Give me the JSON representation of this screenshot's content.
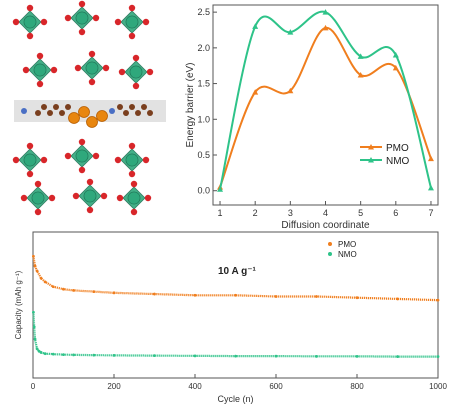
{
  "structure_panel": {
    "colors": {
      "octahedron": "#2fa87c",
      "oxygen": "#d8262a",
      "carbon": "#7a3f1e",
      "nitrogen": "#4a6fc4",
      "hydrogen": "#e9e9e9",
      "sulfur": "#e8860f"
    }
  },
  "chart_data": [
    {
      "type": "line",
      "xlabel": "Diffusion coordinate",
      "ylabel": "Energy barrier (eV)",
      "xlim": [
        0.8,
        7.2
      ],
      "ylim": [
        -0.2,
        2.6
      ],
      "xticks": [
        1,
        2,
        3,
        4,
        5,
        6,
        7
      ],
      "yticks": [
        0.0,
        0.5,
        1.0,
        1.5,
        2.0,
        2.5
      ],
      "x": [
        1,
        2,
        3,
        4,
        5,
        6,
        7
      ],
      "grid": false,
      "legend_position": "bottom-right",
      "series": [
        {
          "name": "PMO",
          "color": "#f07e1e",
          "values": [
            0.05,
            1.38,
            1.4,
            2.28,
            1.62,
            1.72,
            0.45
          ]
        },
        {
          "name": "NMO",
          "color": "#2ec389",
          "values": [
            0.02,
            2.3,
            2.22,
            2.5,
            1.88,
            1.9,
            0.04
          ]
        }
      ]
    },
    {
      "type": "scatter",
      "xlabel": "Cycle (n)",
      "ylabel": "Capacity (mAh g⁻¹)",
      "xlim": [
        0,
        1000
      ],
      "ylim": [
        0,
        60
      ],
      "xticks": [
        0,
        200,
        400,
        600,
        800,
        1000
      ],
      "grid": false,
      "legend_position": "top-right",
      "annotation": "10 A g⁻¹",
      "series": [
        {
          "name": "PMO",
          "color": "#f07e1e",
          "x": [
            1,
            5,
            10,
            20,
            30,
            50,
            75,
            100,
            150,
            200,
            300,
            400,
            500,
            600,
            700,
            800,
            900,
            1000
          ],
          "values": [
            50,
            46,
            44,
            41,
            39.5,
            37.5,
            36.5,
            36,
            35.5,
            35,
            34.5,
            34,
            34,
            33.5,
            33.5,
            33,
            32.5,
            32
          ]
        },
        {
          "name": "NMO",
          "color": "#2ec389",
          "x": [
            1,
            3,
            5,
            10,
            15,
            20,
            30,
            50,
            75,
            100,
            150,
            200,
            300,
            400,
            500,
            600,
            700,
            800,
            900,
            1000
          ],
          "values": [
            27,
            21,
            16,
            12,
            11,
            10.5,
            10,
            9.8,
            9.6,
            9.5,
            9.4,
            9.3,
            9.2,
            9.1,
            9.0,
            9.0,
            8.9,
            8.9,
            8.8,
            8.8
          ]
        }
      ]
    }
  ]
}
